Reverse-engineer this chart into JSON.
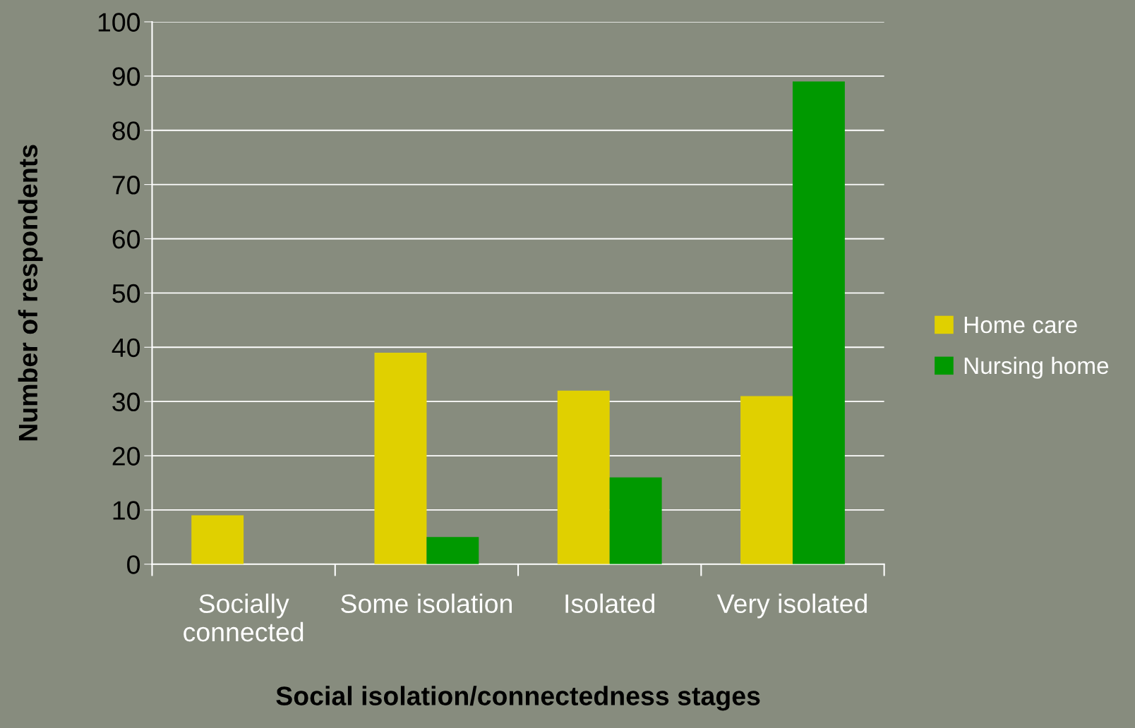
{
  "chart_data": {
    "type": "bar",
    "xlabel": "Social isolation/connectedness stages",
    "ylabel": "Number of respondents",
    "categories": [
      "Socially\nconnected",
      "Some isolation",
      "Isolated",
      "Very isolated"
    ],
    "series": [
      {
        "name": "Home care",
        "color": "#e0d000",
        "values": [
          9,
          39,
          32,
          31
        ]
      },
      {
        "name": "Nursing home",
        "color": "#009900",
        "values": [
          0,
          5,
          16,
          89
        ]
      }
    ],
    "ylim": [
      0,
      100
    ],
    "yticks": [
      0,
      10,
      20,
      30,
      40,
      50,
      60,
      70,
      80,
      90,
      100
    ],
    "grid": "y",
    "legend": "right"
  }
}
